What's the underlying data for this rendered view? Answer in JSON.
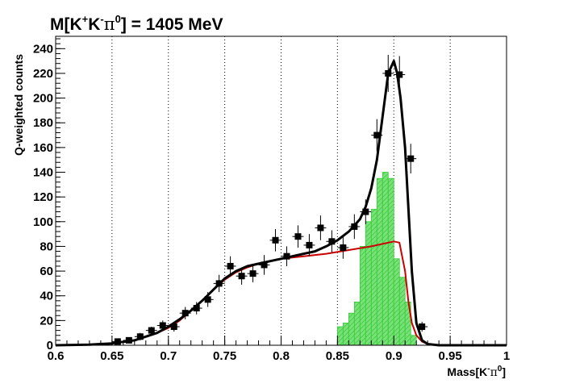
{
  "chart_data": {
    "type": "histogram-fit",
    "title_parts": {
      "main": "M[K",
      "sup1": "+",
      "mid1": "K",
      "sup2": "-",
      "pi": "π",
      "sup3": "0",
      "tail": "] = 1405 MeV"
    },
    "xlabel_parts": {
      "main": "Mass[K",
      "sup1": "-",
      "pi": "π",
      "sup2": "0",
      "tail": "]"
    },
    "ylabel": "Q-weighted counts",
    "xlim": [
      0.6,
      1.0
    ],
    "ylim": [
      0,
      250
    ],
    "x_ticks": [
      "0.6",
      "0.65",
      "0.7",
      "0.75",
      "0.8",
      "0.85",
      "0.9",
      "0.95",
      "1"
    ],
    "y_ticks": [
      "0",
      "20",
      "40",
      "60",
      "80",
      "100",
      "120",
      "140",
      "160",
      "180",
      "200",
      "220",
      "240"
    ],
    "x_gridlines": [
      0.65,
      0.7,
      0.75,
      0.8,
      0.85,
      0.9,
      0.95
    ],
    "grid_x": true,
    "grid_y": false,
    "colors": {
      "data": "#000000",
      "total_fit": "#000000",
      "background_fit": "#cc0000",
      "signal_hist": "#33cc33",
      "signal_fill": "#7be07b",
      "grid": "#000000"
    },
    "data_points": [
      {
        "x": 0.655,
        "y": 3,
        "err": 2
      },
      {
        "x": 0.665,
        "y": 4,
        "err": 2
      },
      {
        "x": 0.675,
        "y": 7,
        "err": 3
      },
      {
        "x": 0.685,
        "y": 12,
        "err": 3
      },
      {
        "x": 0.695,
        "y": 16,
        "err": 4
      },
      {
        "x": 0.705,
        "y": 15,
        "err": 4
      },
      {
        "x": 0.715,
        "y": 26,
        "err": 5
      },
      {
        "x": 0.725,
        "y": 30,
        "err": 5
      },
      {
        "x": 0.735,
        "y": 37,
        "err": 6
      },
      {
        "x": 0.745,
        "y": 50,
        "err": 7
      },
      {
        "x": 0.755,
        "y": 64,
        "err": 8
      },
      {
        "x": 0.765,
        "y": 56,
        "err": 7
      },
      {
        "x": 0.775,
        "y": 58,
        "err": 7
      },
      {
        "x": 0.785,
        "y": 65,
        "err": 8
      },
      {
        "x": 0.795,
        "y": 85,
        "err": 9
      },
      {
        "x": 0.805,
        "y": 72,
        "err": 8
      },
      {
        "x": 0.815,
        "y": 88,
        "err": 9
      },
      {
        "x": 0.825,
        "y": 81,
        "err": 9
      },
      {
        "x": 0.835,
        "y": 95,
        "err": 10
      },
      {
        "x": 0.845,
        "y": 84,
        "err": 9
      },
      {
        "x": 0.855,
        "y": 79,
        "err": 9
      },
      {
        "x": 0.865,
        "y": 96,
        "err": 10
      },
      {
        "x": 0.875,
        "y": 108,
        "err": 10
      },
      {
        "x": 0.885,
        "y": 170,
        "err": 13
      },
      {
        "x": 0.895,
        "y": 220,
        "err": 15
      },
      {
        "x": 0.905,
        "y": 219,
        "err": 15
      },
      {
        "x": 0.915,
        "y": 151,
        "err": 12
      },
      {
        "x": 0.925,
        "y": 15,
        "err": 4
      }
    ],
    "total_fit": {
      "x": [
        0.6,
        0.63,
        0.65,
        0.67,
        0.69,
        0.7,
        0.71,
        0.72,
        0.73,
        0.74,
        0.75,
        0.76,
        0.77,
        0.78,
        0.79,
        0.8,
        0.81,
        0.82,
        0.83,
        0.84,
        0.85,
        0.86,
        0.87,
        0.875,
        0.88,
        0.885,
        0.89,
        0.895,
        0.9,
        0.903,
        0.906,
        0.91,
        0.913,
        0.916,
        0.92,
        0.925,
        0.93,
        0.94,
        0.96,
        1.0
      ],
      "y": [
        0,
        0.5,
        1.5,
        4,
        10,
        15,
        21,
        28,
        36,
        45,
        54,
        60,
        64,
        66,
        68,
        70,
        72,
        74,
        76,
        80,
        85,
        92,
        102,
        112,
        127,
        150,
        185,
        220,
        230,
        220,
        200,
        160,
        110,
        60,
        18,
        4,
        1,
        0,
        0,
        0
      ]
    },
    "background_fit": {
      "x": [
        0.6,
        0.63,
        0.65,
        0.67,
        0.69,
        0.7,
        0.71,
        0.72,
        0.73,
        0.74,
        0.75,
        0.76,
        0.77,
        0.78,
        0.79,
        0.8,
        0.82,
        0.84,
        0.86,
        0.88,
        0.9,
        0.905,
        0.91,
        0.913,
        0.916,
        0.92,
        0.925,
        0.93,
        0.94,
        0.96,
        1.0
      ],
      "y": [
        0,
        0.5,
        1.5,
        4,
        10,
        14,
        20,
        28,
        36,
        45,
        53,
        59,
        63,
        66,
        68,
        70,
        72,
        74,
        77,
        80,
        84,
        83,
        60,
        35,
        18,
        8,
        3,
        1,
        0,
        0,
        0
      ]
    },
    "signal_hist": {
      "bin_edges": [
        0.85,
        0.855,
        0.86,
        0.865,
        0.87,
        0.875,
        0.88,
        0.885,
        0.89,
        0.895,
        0.9,
        0.905,
        0.91,
        0.915,
        0.92
      ],
      "values": [
        15,
        18,
        26,
        35,
        80,
        100,
        110,
        135,
        140,
        135,
        70,
        55,
        35,
        8
      ]
    }
  }
}
